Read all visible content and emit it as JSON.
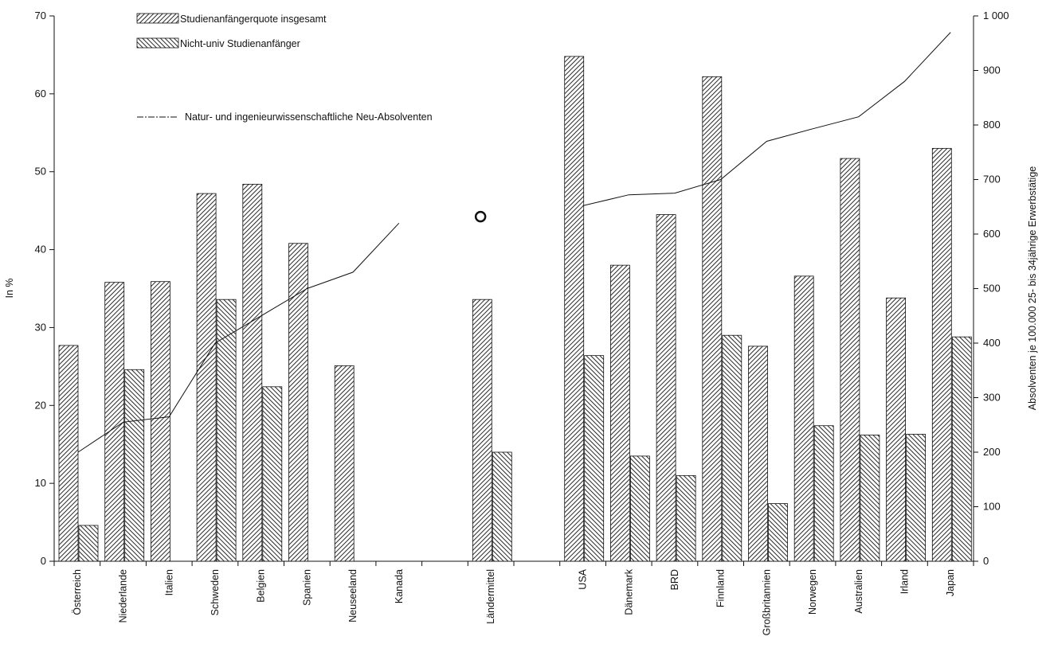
{
  "chart_data": {
    "type": "bar",
    "categories": [
      "Österreich",
      "Niederlande",
      "Italien",
      "Schweden",
      "Belgien",
      "Spanien",
      "Neuseeland",
      "Kanada",
      "",
      "Ländermittel",
      "",
      "USA",
      "Dänemark",
      "BRD",
      "Finnland",
      "Großbritannien",
      "Norwegen",
      "Australien",
      "Irland",
      "Japan"
    ],
    "series": [
      {
        "name": "Studienanfängerquote insgesamt",
        "axis": "left",
        "kind": "bar",
        "pattern": "diagonal-hatch-right",
        "values": [
          27.7,
          35.8,
          35.9,
          47.2,
          48.4,
          40.8,
          25.1,
          null,
          null,
          33.6,
          null,
          64.8,
          38.0,
          44.5,
          62.2,
          27.6,
          36.6,
          51.7,
          33.8,
          53.0
        ]
      },
      {
        "name": "Nicht-univ Studienanfänger",
        "axis": "left",
        "kind": "bar",
        "pattern": "diagonal-hatch-left",
        "values": [
          4.6,
          24.6,
          null,
          33.6,
          22.4,
          null,
          null,
          null,
          null,
          14.0,
          null,
          26.4,
          13.5,
          11.0,
          29.0,
          7.4,
          17.4,
          16.2,
          16.3,
          28.8
        ]
      },
      {
        "name": "Natur- und ingenieurwissenschaftliche Neu-Absolventen",
        "axis": "right",
        "kind": "line",
        "values": [
          200,
          255,
          265,
          400,
          450,
          500,
          530,
          620,
          null,
          null,
          null,
          652,
          672,
          675,
          700,
          770,
          793,
          815,
          880,
          970
        ],
        "mean_marker": 632
      }
    ],
    "ylabel": "In %",
    "ylim": [
      0,
      70
    ],
    "yticks": [
      0,
      10,
      20,
      30,
      40,
      50,
      60,
      70
    ],
    "y2label": "Absolventen je 100.000 25- bis 34jährige Erwerbstätige",
    "y2lim": [
      0,
      1000
    ],
    "y2ticks": [
      "0",
      "100",
      "200",
      "300",
      "400",
      "500",
      "600",
      "700",
      "800",
      "900",
      "1 000"
    ],
    "xlabel": "",
    "grid": false,
    "legend_position": "top-left"
  },
  "colors": {
    "ink": "#111111",
    "background": "#ffffff"
  }
}
